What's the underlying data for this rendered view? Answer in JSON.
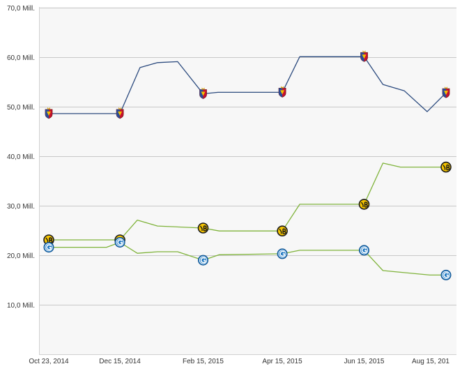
{
  "chart_data": {
    "type": "line",
    "title": "",
    "xlabel": "",
    "ylabel": "",
    "ylim": [
      0,
      70
    ],
    "y_ticks": [
      {
        "value": 10,
        "label": "10,0 Mill."
      },
      {
        "value": 20,
        "label": "20,0 Mill."
      },
      {
        "value": 30,
        "label": "30,0 Mill."
      },
      {
        "value": 40,
        "label": "40,0 Mill."
      },
      {
        "value": 50,
        "label": "50,0 Mill."
      },
      {
        "value": 60,
        "label": "60,0 Mill."
      },
      {
        "value": 70,
        "label": "70,0 Mill."
      }
    ],
    "x_range": [
      "2014-10-23",
      "2015-08-15"
    ],
    "x_ticks": [
      {
        "date": "2014-10-23",
        "label": "Oct 23, 2014"
      },
      {
        "date": "2014-12-15",
        "label": "Dec 15, 2014"
      },
      {
        "date": "2015-02-15",
        "label": "Feb 15, 2015"
      },
      {
        "date": "2015-04-15",
        "label": "Apr 15, 2015"
      },
      {
        "date": "2015-06-15",
        "label": "Jun 15, 2015"
      },
      {
        "date": "2015-08-15",
        "label": "Aug 15, 201"
      }
    ],
    "grid": true,
    "legend": "none",
    "series": [
      {
        "color": "#2b4a7e",
        "marker_icon": "basel-crest-icon",
        "points": [
          {
            "x": "2014-10-23",
            "y": 48.6,
            "marker": true
          },
          {
            "x": "2014-12-15",
            "y": 48.6,
            "marker": true
          },
          {
            "x": "2014-12-30",
            "y": 57.9,
            "marker": false
          },
          {
            "x": "2015-01-12",
            "y": 58.9,
            "marker": false
          },
          {
            "x": "2015-01-27",
            "y": 59.1,
            "marker": false
          },
          {
            "x": "2015-02-15",
            "y": 52.6,
            "marker": true
          },
          {
            "x": "2015-02-26",
            "y": 52.9,
            "marker": false
          },
          {
            "x": "2015-04-15",
            "y": 52.9,
            "marker": true
          },
          {
            "x": "2015-04-28",
            "y": 60.1,
            "marker": false
          },
          {
            "x": "2015-06-15",
            "y": 60.1,
            "marker": true
          },
          {
            "x": "2015-06-29",
            "y": 54.5,
            "marker": false
          },
          {
            "x": "2015-07-15",
            "y": 53.2,
            "marker": false
          },
          {
            "x": "2015-08-01",
            "y": 49.0,
            "marker": false
          },
          {
            "x": "2015-08-15",
            "y": 52.8,
            "marker": true
          }
        ]
      },
      {
        "color": "#7fb33a",
        "marker_icon": "young-boys-crest-icon",
        "points": [
          {
            "x": "2014-10-23",
            "y": 23.1,
            "marker": true
          },
          {
            "x": "2014-12-15",
            "y": 23.1,
            "marker": true
          },
          {
            "x": "2014-12-28",
            "y": 27.1,
            "marker": false
          },
          {
            "x": "2015-01-12",
            "y": 25.9,
            "marker": false
          },
          {
            "x": "2015-02-15",
            "y": 25.5,
            "marker": true
          },
          {
            "x": "2015-02-27",
            "y": 24.9,
            "marker": false
          },
          {
            "x": "2015-04-15",
            "y": 24.9,
            "marker": true
          },
          {
            "x": "2015-04-28",
            "y": 30.3,
            "marker": false
          },
          {
            "x": "2015-06-15",
            "y": 30.3,
            "marker": true
          },
          {
            "x": "2015-06-29",
            "y": 38.6,
            "marker": false
          },
          {
            "x": "2015-07-12",
            "y": 37.8,
            "marker": false
          },
          {
            "x": "2015-08-15",
            "y": 37.8,
            "marker": true
          }
        ]
      },
      {
        "color": "#7fb33a",
        "marker_icon": "grasshopper-crest-icon",
        "points": [
          {
            "x": "2014-10-23",
            "y": 21.6,
            "marker": true
          },
          {
            "x": "2014-12-05",
            "y": 21.6,
            "marker": false
          },
          {
            "x": "2014-12-15",
            "y": 22.6,
            "marker": true
          },
          {
            "x": "2014-12-28",
            "y": 20.4,
            "marker": false
          },
          {
            "x": "2015-01-12",
            "y": 20.7,
            "marker": false
          },
          {
            "x": "2015-01-27",
            "y": 20.7,
            "marker": false
          },
          {
            "x": "2015-02-15",
            "y": 19.0,
            "marker": true
          },
          {
            "x": "2015-02-27",
            "y": 20.1,
            "marker": false
          },
          {
            "x": "2015-04-15",
            "y": 20.3,
            "marker": true
          },
          {
            "x": "2015-04-28",
            "y": 21.0,
            "marker": false
          },
          {
            "x": "2015-06-15",
            "y": 21.0,
            "marker": true
          },
          {
            "x": "2015-06-29",
            "y": 16.9,
            "marker": false
          },
          {
            "x": "2015-08-03",
            "y": 16.0,
            "marker": false
          },
          {
            "x": "2015-08-15",
            "y": 16.0,
            "marker": true
          }
        ]
      }
    ]
  }
}
